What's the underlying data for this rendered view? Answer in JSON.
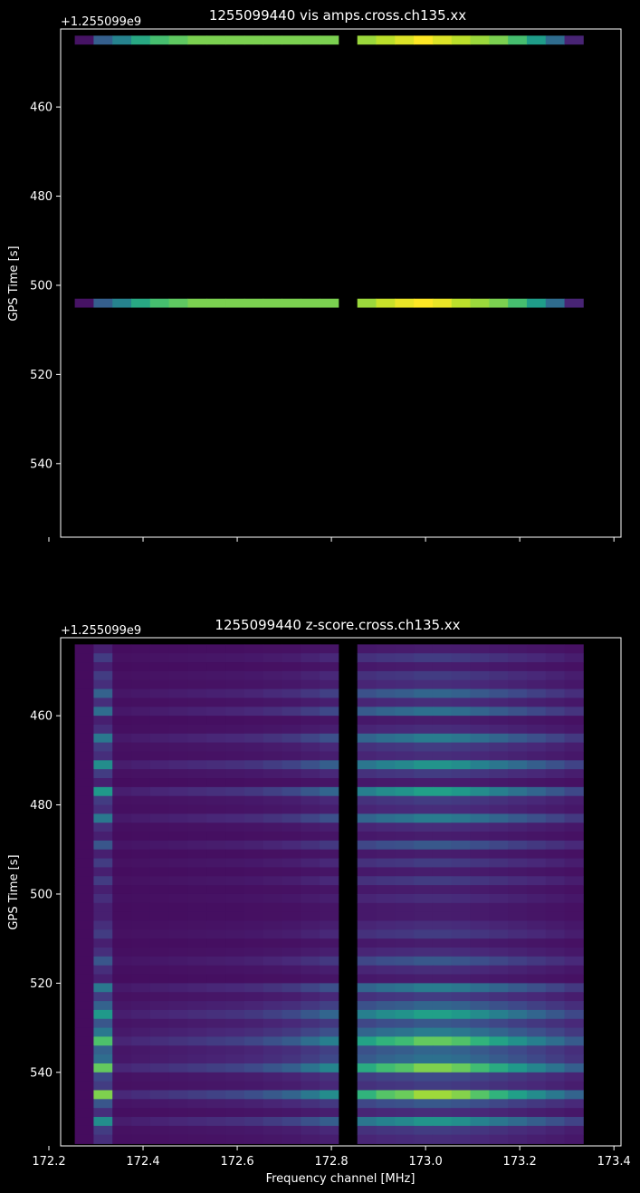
{
  "chart_data": [
    {
      "type": "heatmap",
      "title": "1255099440 vis amps.cross.ch135.xx",
      "ylabel": "GPS Time [s]",
      "xlabel": "",
      "offset_text": "+1.255099e9",
      "xlim": [
        172.225,
        173.415
      ],
      "ylim": [
        556.5,
        442.5
      ],
      "xticks": [
        172.2,
        172.4,
        172.6,
        172.8,
        173.0,
        173.2,
        173.4
      ],
      "xtick_labels_visible": false,
      "yticks": [
        460,
        480,
        500,
        520,
        540
      ],
      "freq_start": 172.255,
      "freq_step": 0.04,
      "n_channels": 27,
      "rows": [
        {
          "time": 445,
          "values": [
            0.05,
            0.3,
            0.45,
            0.6,
            0.7,
            0.75,
            0.8,
            0.8,
            0.8,
            0.8,
            0.8,
            0.8,
            0.8,
            0.8,
            null,
            0.85,
            0.9,
            0.95,
            1.0,
            0.95,
            0.9,
            0.85,
            0.8,
            0.7,
            0.55,
            0.35,
            0.1
          ]
        },
        {
          "time": 504,
          "values": [
            0.05,
            0.3,
            0.45,
            0.6,
            0.7,
            0.75,
            0.8,
            0.8,
            0.8,
            0.8,
            0.8,
            0.8,
            0.8,
            0.8,
            null,
            0.85,
            0.92,
            0.97,
            1.0,
            0.97,
            0.9,
            0.85,
            0.8,
            0.7,
            0.55,
            0.35,
            0.1
          ]
        }
      ],
      "colormap": "viridis"
    },
    {
      "type": "heatmap",
      "title": "1255099440 z-score.cross.ch135.xx",
      "ylabel": "GPS Time [s]",
      "xlabel": "Frequency channel [MHz]",
      "offset_text": "+1.255099e9",
      "xlim": [
        172.225,
        173.415
      ],
      "ylim": [
        556.5,
        442.5
      ],
      "xticks": [
        172.2,
        172.4,
        172.6,
        172.8,
        173.0,
        173.2,
        173.4
      ],
      "xtick_labels": [
        "172.2",
        "172.4",
        "172.6",
        "172.8",
        "173.0",
        "173.2",
        "173.4"
      ],
      "yticks": [
        460,
        480,
        500,
        520,
        540
      ],
      "yticklabels": [
        "460",
        "480",
        "500",
        "520",
        "540"
      ],
      "freq_start": 172.255,
      "freq_step": 0.04,
      "n_channels": 27,
      "time_start": 445,
      "time_step": 2,
      "n_times": 56,
      "row_activity": [
        0.05,
        0.15,
        0.05,
        0.15,
        0.1,
        0.3,
        0.1,
        0.35,
        0.05,
        0.1,
        0.4,
        0.15,
        0.1,
        0.5,
        0.15,
        0.05,
        0.55,
        0.15,
        0.1,
        0.4,
        0.1,
        0.05,
        0.25,
        0.05,
        0.15,
        0.05,
        0.15,
        0.05,
        0.1,
        0.05,
        0.05,
        0.1,
        0.15,
        0.05,
        0.1,
        0.25,
        0.1,
        0.05,
        0.4,
        0.15,
        0.3,
        0.55,
        0.25,
        0.4,
        0.75,
        0.3,
        0.35,
        0.8,
        0.2,
        0.15,
        0.85,
        0.25,
        0.1,
        0.5,
        0.15,
        0.1
      ],
      "channel_profile": [
        0.05,
        0.6,
        0.1,
        0.12,
        0.14,
        0.16,
        0.18,
        0.2,
        0.22,
        0.25,
        0.3,
        0.35,
        0.45,
        0.55,
        null,
        0.75,
        0.85,
        0.9,
        1.0,
        1.0,
        0.95,
        0.85,
        0.75,
        0.65,
        0.55,
        0.45,
        0.35
      ],
      "colormap": "viridis"
    }
  ]
}
